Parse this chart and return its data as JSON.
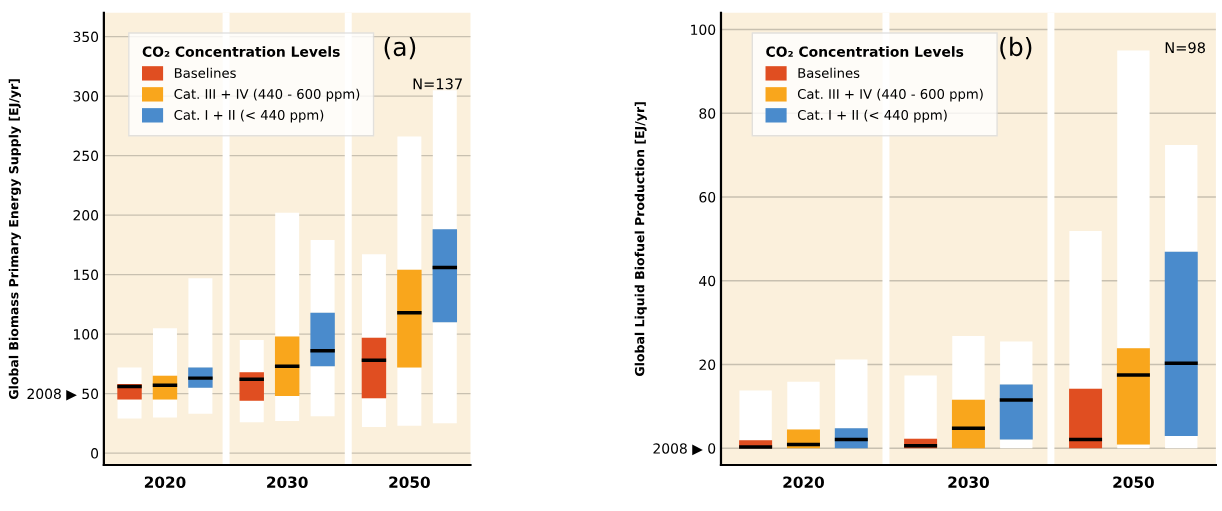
{
  "chart_data": [
    {
      "type": "box",
      "ylabel": "Global Biomass Primary Energy Supply [EJ/yr]",
      "legend_title": "CO₂ Concentration Levels",
      "annotations": [
        "(a)",
        "N=137"
      ],
      "categories": [
        "2020",
        "2030",
        "2050"
      ],
      "ylim": [
        -10,
        370
      ],
      "yticks": [
        0,
        {
          "value": 50,
          "label": "2008 ▶ 50"
        },
        100,
        150,
        200,
        250,
        300,
        350
      ],
      "grid": "y",
      "legend": "top left",
      "series": [
        {
          "name": "Baselines",
          "color": "#e04e21",
          "boxes": [
            {
              "low": 29,
              "q1": 45,
              "median": 56,
              "q3": 58,
              "high": 72
            },
            {
              "low": 26,
              "q1": 44,
              "median": 62,
              "q3": 68,
              "high": 95
            },
            {
              "low": 22,
              "q1": 46,
              "median": 78,
              "q3": 97,
              "high": 167
            }
          ]
        },
        {
          "name": "Cat. III + IV (440 - 600 ppm)",
          "color": "#f9a61c",
          "boxes": [
            {
              "low": 30,
              "q1": 45,
              "median": 57,
              "q3": 65,
              "high": 105
            },
            {
              "low": 27,
              "q1": 48,
              "median": 73,
              "q3": 98,
              "high": 202
            },
            {
              "low": 23,
              "q1": 72,
              "median": 118,
              "q3": 154,
              "high": 266
            }
          ]
        },
        {
          "name": "Cat. I + II (< 440 ppm)",
          "color": "#4a8bcc",
          "boxes": [
            {
              "low": 33,
              "q1": 55,
              "median": 63,
              "q3": 72,
              "high": 147
            },
            {
              "low": 31,
              "q1": 73,
              "median": 86,
              "q3": 118,
              "high": 179
            },
            {
              "low": 25,
              "q1": 110,
              "median": 156,
              "q3": 188,
              "high": 305
            }
          ]
        }
      ]
    },
    {
      "type": "box",
      "ylabel": "Global Liquid Biofuel Production [EJ/yr]",
      "legend_title": "CO₂ Concentration Levels",
      "annotations": [
        "(b)",
        "N=98"
      ],
      "categories": [
        "2020",
        "2030",
        "2050"
      ],
      "ylim": [
        -4,
        104
      ],
      "yticks": [
        {
          "value": 0,
          "label": "2008 ▶ 0"
        },
        20,
        40,
        60,
        80,
        100
      ],
      "grid": "y",
      "legend": "top left",
      "series": [
        {
          "name": "Baselines",
          "color": "#e04e21",
          "boxes": [
            {
              "low": 0,
              "q1": 0,
              "median": 0.3,
              "q3": 1.9,
              "high": 13.8
            },
            {
              "low": 0,
              "q1": 0,
              "median": 0.6,
              "q3": 2.3,
              "high": 17.4
            },
            {
              "low": 0,
              "q1": 0,
              "median": 2.1,
              "q3": 14.2,
              "high": 51.9
            }
          ]
        },
        {
          "name": "Cat. III + IV (440 - 600 ppm)",
          "color": "#f9a61c",
          "boxes": [
            {
              "low": 0,
              "q1": 0,
              "median": 0.9,
              "q3": 4.5,
              "high": 15.9
            },
            {
              "low": 0,
              "q1": 0,
              "median": 4.8,
              "q3": 11.6,
              "high": 26.8
            },
            {
              "low": 0,
              "q1": 0.9,
              "median": 17.5,
              "q3": 23.9,
              "high": 95
            }
          ]
        },
        {
          "name": "Cat. I + II (< 440 ppm)",
          "color": "#4a8bcc",
          "boxes": [
            {
              "low": 0,
              "q1": 0,
              "median": 2.1,
              "q3": 4.8,
              "high": 21.2
            },
            {
              "low": 0,
              "q1": 2.1,
              "median": 11.5,
              "q3": 15.2,
              "high": 25.5
            },
            {
              "low": 0,
              "q1": 2.9,
              "median": 20.3,
              "q3": 46.9,
              "high": 72.4
            }
          ]
        }
      ]
    }
  ]
}
